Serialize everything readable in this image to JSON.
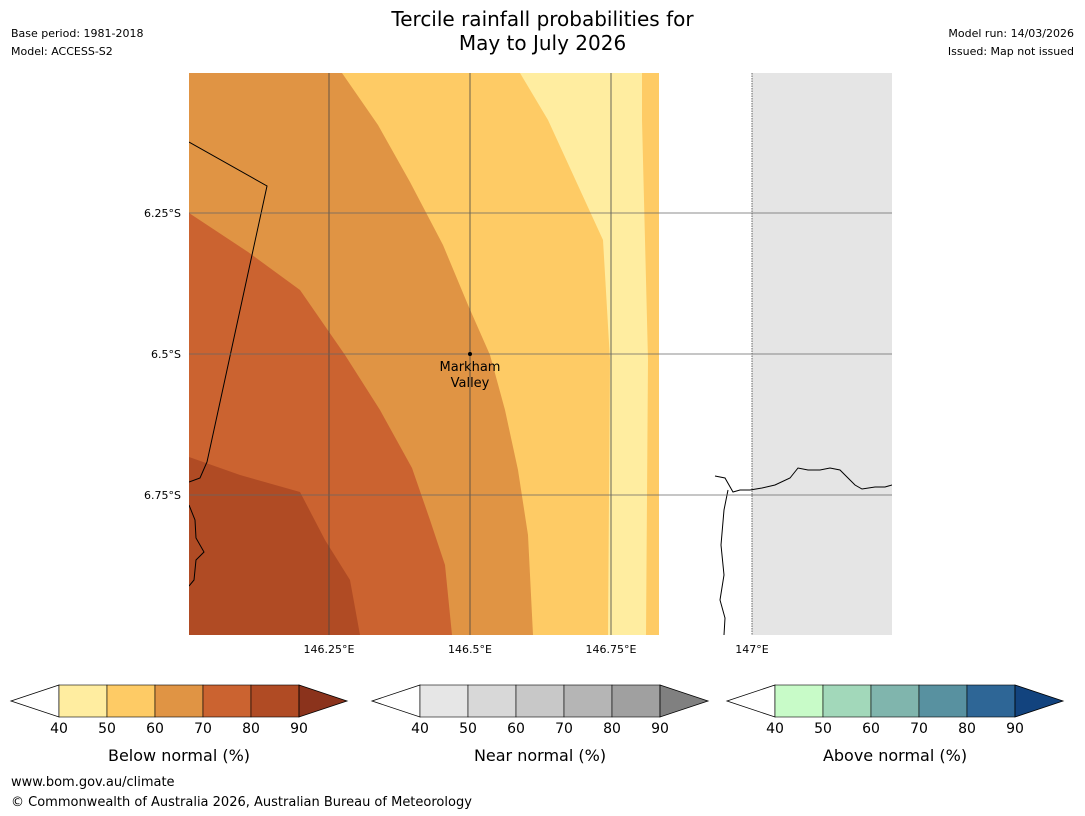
{
  "title_line1": "Tercile rainfall probabilities for",
  "title_line2": "May to July 2026",
  "meta_left": {
    "base_period": "Base period: 1981-2018",
    "model": "Model: ACCESS-S2"
  },
  "meta_right": {
    "model_run": "Model run: 14/03/2026",
    "issued": "Issued: Map not issued"
  },
  "map": {
    "lat_labels": [
      "6.25°S",
      "6.5°S",
      "6.75°S"
    ],
    "lon_labels": [
      "146.25°E",
      "146.5°E",
      "146.75°E",
      "147°E"
    ],
    "place_name_line1": "Markham",
    "place_name_line2": "Valley",
    "colors": {
      "below_40": "#ffeda0",
      "below_50": "#fecb65",
      "below_60": "#e09444",
      "below_70": "#cb6330",
      "below_80": "#b04b24",
      "no_data": "#e5e5e5"
    }
  },
  "colorbars": [
    {
      "title": "Below normal (%)",
      "ticks": [
        "40",
        "50",
        "60",
        "70",
        "80",
        "90"
      ],
      "colors": [
        "#ffeda0",
        "#fecb65",
        "#e09444",
        "#cb6330",
        "#b04b24"
      ],
      "extend_color": "#8b331c"
    },
    {
      "title": "Near normal (%)",
      "ticks": [
        "40",
        "50",
        "60",
        "70",
        "80",
        "90"
      ],
      "colors": [
        "#e6e6e6",
        "#d8d8d8",
        "#c8c8c8",
        "#b5b5b5",
        "#a0a0a0"
      ],
      "extend_color": "#808080"
    },
    {
      "title": "Above normal (%)",
      "ticks": [
        "40",
        "50",
        "60",
        "70",
        "80",
        "90"
      ],
      "colors": [
        "#c8fbc8",
        "#a2d8ba",
        "#80b5ad",
        "#5891a0",
        "#2e6696"
      ],
      "extend_color": "#12437e"
    }
  ],
  "footer": {
    "url": "www.bom.gov.au/climate",
    "copyright": "© Commonwealth of Australia 2026, Australian Bureau of Meteorology"
  }
}
